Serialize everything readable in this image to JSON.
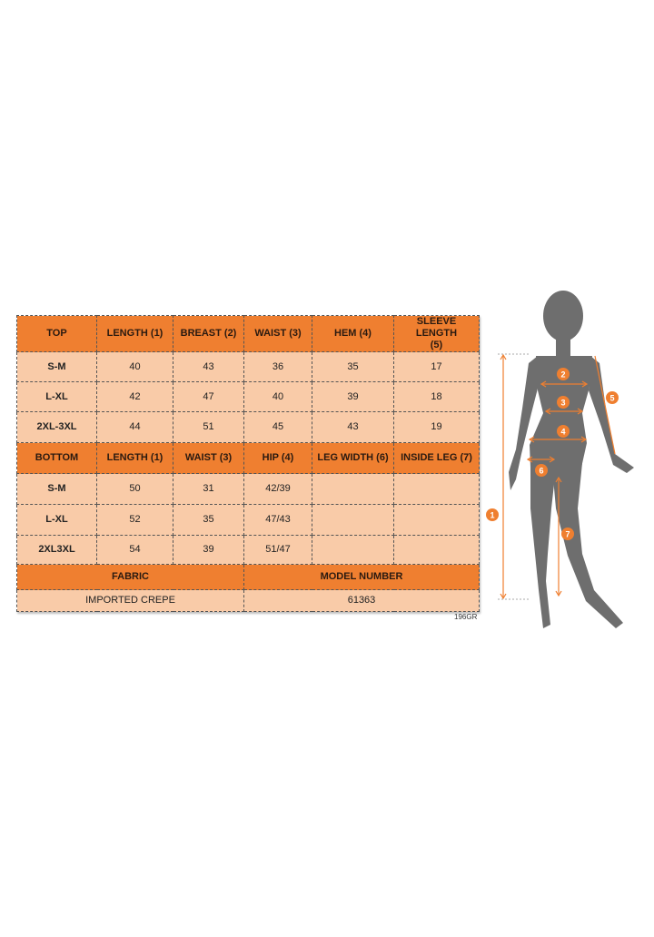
{
  "top_section": {
    "headers": [
      "TOP",
      "LENGTH (1)",
      "BREAST (2)",
      "WAIST (3)",
      "HEM (4)",
      "SLEEVE LENGTH (5)"
    ],
    "rows": [
      [
        "S-M",
        "40",
        "43",
        "36",
        "35",
        "17"
      ],
      [
        "L-XL",
        "42",
        "47",
        "40",
        "39",
        "18"
      ],
      [
        "2XL-3XL",
        "44",
        "51",
        "45",
        "43",
        "19"
      ]
    ]
  },
  "bottom_section": {
    "headers": [
      "BOTTOM",
      "LENGTH (1)",
      "WAIST (3)",
      "HIP (4)",
      "LEG WIDTH (6)",
      "INSIDE LEG (7)"
    ],
    "rows": [
      [
        "S-M",
        "50",
        "31",
        "42/39",
        "",
        ""
      ],
      [
        "L-XL",
        "52",
        "35",
        "47/43",
        "",
        ""
      ],
      [
        "2XL3XL",
        "54",
        "39",
        "51/47",
        "",
        ""
      ]
    ]
  },
  "info_section": {
    "fabric_label": "FABRIC",
    "fabric_value": "IMPORTED CREPE",
    "model_label": "MODEL NUMBER",
    "model_value": "61363"
  },
  "product_code": "196GR",
  "figure": {
    "markers": [
      "1",
      "2",
      "3",
      "4",
      "5",
      "6",
      "7"
    ]
  },
  "colors": {
    "header_orange": "#ef7f30",
    "row_peach": "#f9cba8",
    "silhouette": "#6e6e6e",
    "marker_orange": "#ef7f30"
  }
}
